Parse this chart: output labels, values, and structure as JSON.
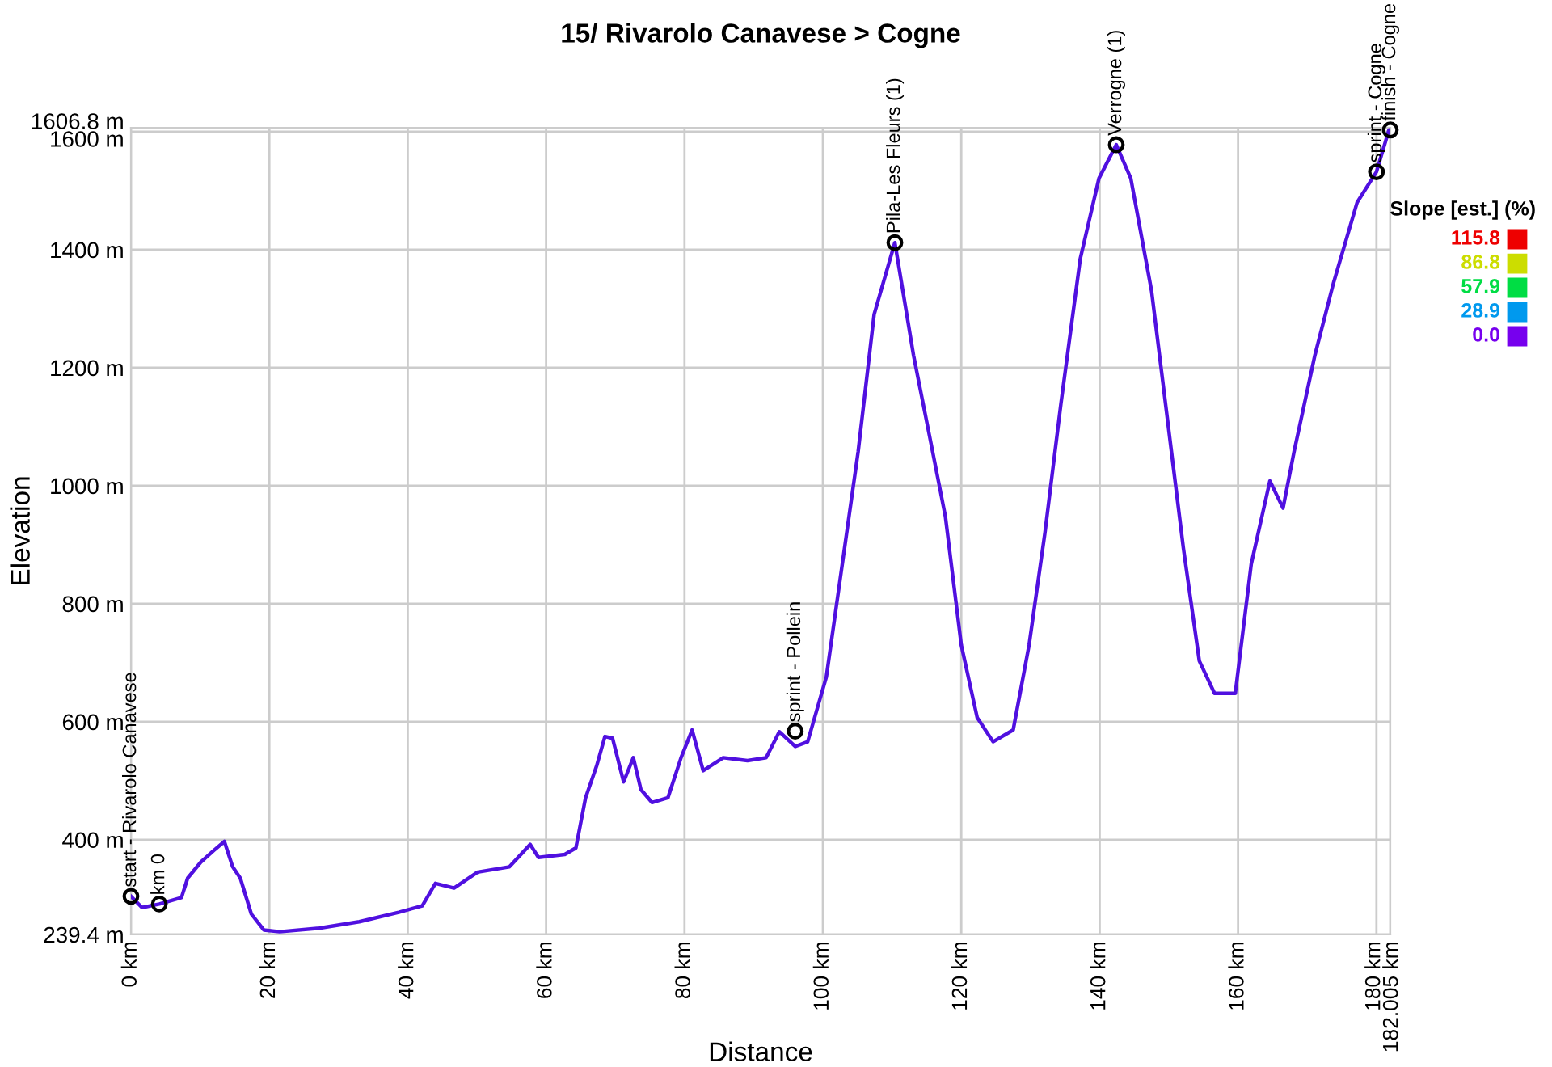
{
  "chart_data": {
    "type": "line",
    "title": "15/ Rivarolo Canavese > Cogne",
    "xlabel": "Distance",
    "ylabel": "Elevation",
    "x": [
      0,
      1.6,
      4.1,
      7.3,
      8.2,
      10.1,
      11.9,
      13.5,
      14.7,
      15.8,
      17.4,
      19.2,
      21.5,
      27.2,
      33,
      38.7,
      42.1,
      44,
      46.7,
      50.1,
      54.7,
      57.7,
      58.9,
      62.7,
      64.3,
      65.7,
      67.3,
      68.5,
      69.6,
      71.2,
      72.6,
      73.7,
      75.3,
      77.6,
      79.5,
      81.1,
      82.7,
      85.6,
      89.1,
      91.8,
      93.7,
      96,
      97.8,
      100.5,
      102.8,
      105.1,
      107.4,
      110.4,
      113.1,
      115.4,
      117.7,
      120,
      122.3,
      124.6,
      127.5,
      129.8,
      132.1,
      134.4,
      137.2,
      139.9,
      142.4,
      144.5,
      147.5,
      149.8,
      152.1,
      154.4,
      156.6,
      159.6,
      161.9,
      164.6,
      166.5,
      168.1,
      171.1,
      173.8,
      177.2,
      180,
      181.8,
      182.0
    ],
    "series": [
      {
        "color": "#5010e0",
        "values": [
          304,
          285,
          291,
          302,
          335,
          362,
          381,
          397,
          354,
          335,
          274,
          247,
          244,
          250,
          261,
          277,
          288,
          326,
          318,
          345,
          354,
          392,
          370,
          375,
          386,
          471,
          525,
          575,
          572,
          498,
          539,
          485,
          463,
          471,
          539,
          586,
          517,
          539,
          534,
          539,
          583,
          558,
          566,
          676,
          867,
          1058,
          1290,
          1412,
          1221,
          1085,
          948,
          730,
          607,
          566,
          586,
          730,
          921,
          1139,
          1385,
          1521,
          1578,
          1521,
          1330,
          1112,
          894,
          703,
          648,
          648,
          867,
          1008,
          962,
          1058,
          1221,
          1344,
          1480,
          1532,
          1603,
          1603
        ]
      }
    ],
    "xlim": [
      0,
      182.005
    ],
    "xticks": [
      {
        "value": 0,
        "label": "0 km"
      },
      {
        "value": 20,
        "label": "20 km"
      },
      {
        "value": 40,
        "label": "40 km"
      },
      {
        "value": 60,
        "label": "60 km"
      },
      {
        "value": 80,
        "label": "80 km"
      },
      {
        "value": 100,
        "label": "100 km"
      },
      {
        "value": 120,
        "label": "120 km"
      },
      {
        "value": 140,
        "label": "140 km"
      },
      {
        "value": 160,
        "label": "160 km"
      },
      {
        "value": 180,
        "label": "180 km"
      },
      {
        "value": 182.005,
        "label": "182.005 km"
      }
    ],
    "ylim": [
      239.4,
      1606.8
    ],
    "yticks": [
      {
        "value": 239.4,
        "label": "239.4 m"
      },
      {
        "value": 400,
        "label": "400 m"
      },
      {
        "value": 600,
        "label": "600 m"
      },
      {
        "value": 800,
        "label": "800 m"
      },
      {
        "value": 1000,
        "label": "1000 m"
      },
      {
        "value": 1200,
        "label": "1200 m"
      },
      {
        "value": 1400,
        "label": "1400 m"
      },
      {
        "value": 1600,
        "label": "1600 m"
      },
      {
        "value": 1606.8,
        "label": "1606.8 m"
      }
    ],
    "grid": true,
    "annotations": [
      {
        "text": "start - Rivarolo Canavese",
        "x": 0,
        "y": 304
      },
      {
        "text": "km 0",
        "x": 4.1,
        "y": 291
      },
      {
        "text": "sprint - Pollein",
        "x": 96,
        "y": 584
      },
      {
        "text": "Pila-Les Fleurs (1)",
        "x": 110.4,
        "y": 1412
      },
      {
        "text": "Verrogne (1)",
        "x": 142.4,
        "y": 1578
      },
      {
        "text": "sprint - Cogne",
        "x": 180,
        "y": 1532
      },
      {
        "text": "finish - Cogne",
        "x": 182.0,
        "y": 1603
      }
    ],
    "clabel": "Slope [est.] (%)",
    "cticks": [
      115.8,
      86.8,
      57.9,
      28.9,
      {
        "value": 0,
        "label": "0.0"
      }
    ],
    "colors": [
      "#ee0000",
      "#ccdd00",
      "#00dd44",
      "#0099ee",
      "#7700ee"
    ]
  }
}
